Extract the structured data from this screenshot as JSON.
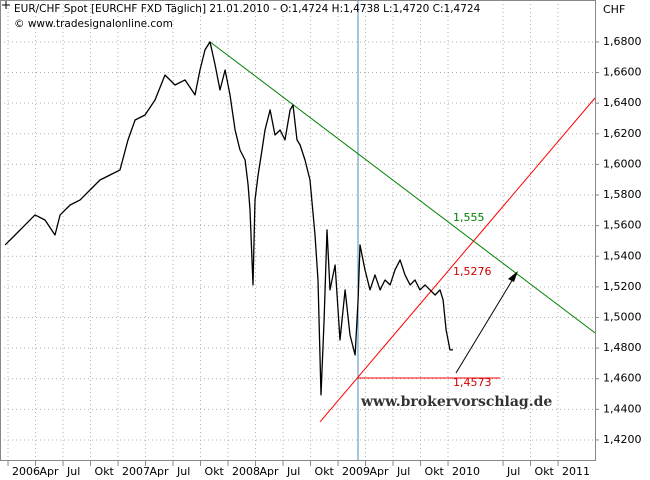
{
  "chart_data": {
    "type": "line",
    "title": "EUR/CHF Spot [EURCHF FXD  Täglich] 21.01.2010 - O:1,4724 H:1,4738 L:1,4720 C:1,4724",
    "subtitle": "© www.tradesignalonline.com",
    "y_label": "CHF",
    "watermark": "www.brokervorschlag.de",
    "grid": true,
    "xlim": [
      2005.927,
      2011.336
    ],
    "ylim": [
      1.4069,
      1.7074
    ],
    "xticks": [
      {
        "value": 2006,
        "label": "2006"
      },
      {
        "value": 2006.25,
        "label": "Apr"
      },
      {
        "value": 2006.5,
        "label": "Jul"
      },
      {
        "value": 2006.75,
        "label": "Okt"
      },
      {
        "value": 2007,
        "label": "2007"
      },
      {
        "value": 2007.25,
        "label": "Apr"
      },
      {
        "value": 2007.5,
        "label": "Jul"
      },
      {
        "value": 2007.75,
        "label": "Okt"
      },
      {
        "value": 2008,
        "label": "2008"
      },
      {
        "value": 2008.25,
        "label": "Apr"
      },
      {
        "value": 2008.5,
        "label": "Jul"
      },
      {
        "value": 2008.75,
        "label": "Okt"
      },
      {
        "value": 2009,
        "label": "2009"
      },
      {
        "value": 2009.25,
        "label": "Apr"
      },
      {
        "value": 2009.5,
        "label": "Jul"
      },
      {
        "value": 2009.75,
        "label": "Okt"
      },
      {
        "value": 2010,
        "label": "2010"
      },
      {
        "value": 2010.5,
        "label": "Jul"
      },
      {
        "value": 2010.75,
        "label": "Okt"
      },
      {
        "value": 2011,
        "label": "2011"
      }
    ],
    "yticks": [
      {
        "value": 1.42,
        "label": "1,4200"
      },
      {
        "value": 1.44,
        "label": "1,4400"
      },
      {
        "value": 1.46,
        "label": "1,4600"
      },
      {
        "value": 1.48,
        "label": "1,4800"
      },
      {
        "value": 1.5,
        "label": "1,5000"
      },
      {
        "value": 1.52,
        "label": "1,5200"
      },
      {
        "value": 1.54,
        "label": "1,5400"
      },
      {
        "value": 1.56,
        "label": "1,5600"
      },
      {
        "value": 1.58,
        "label": "1,5800"
      },
      {
        "value": 1.6,
        "label": "1,6000"
      },
      {
        "value": 1.62,
        "label": "1,6200"
      },
      {
        "value": 1.64,
        "label": "1,6400"
      },
      {
        "value": 1.66,
        "label": "1,6600"
      },
      {
        "value": 1.68,
        "label": "1,6800"
      }
    ],
    "series": [
      {
        "name": "EUR/CHF",
        "color": "#000000",
        "x": [
          2005.973,
          2006.064,
          2006.155,
          2006.245,
          2006.336,
          2006.427,
          2006.473,
          2006.564,
          2006.655,
          2006.745,
          2006.836,
          2006.927,
          2007.018,
          2007.091,
          2007.155,
          2007.245,
          2007.336,
          2007.427,
          2007.518,
          2007.609,
          2007.7,
          2007.745,
          2007.791,
          2007.836,
          2007.882,
          2007.927,
          2007.973,
          2008.018,
          2008.064,
          2008.109,
          2008.155,
          2008.182,
          2008.2,
          2008.227,
          2008.245,
          2008.273,
          2008.309,
          2008.336,
          2008.382,
          2008.427,
          2008.473,
          2008.518,
          2008.564,
          2008.591,
          2008.627,
          2008.655,
          2008.7,
          2008.745,
          2008.791,
          2008.818,
          2008.845,
          2008.873,
          2008.9,
          2008.927,
          2008.973,
          2009.018,
          2009.064,
          2009.109,
          2009.155,
          2009.182,
          2009.2,
          2009.245,
          2009.291,
          2009.336,
          2009.382,
          2009.427,
          2009.473,
          2009.518,
          2009.564,
          2009.609,
          2009.655,
          2009.7,
          2009.745,
          2009.791,
          2009.836,
          2009.882,
          2009.927,
          2009.955,
          2009.982,
          2010.018,
          2010.045
        ],
        "values": [
          1.5474,
          1.5539,
          1.5605,
          1.567,
          1.5637,
          1.5539,
          1.567,
          1.5735,
          1.5768,
          1.5833,
          1.5898,
          1.5931,
          1.5964,
          1.616,
          1.629,
          1.6323,
          1.6421,
          1.6584,
          1.6519,
          1.6552,
          1.6454,
          1.6617,
          1.6748,
          1.68,
          1.665,
          1.6486,
          1.6617,
          1.6454,
          1.6225,
          1.6094,
          1.6029,
          1.5866,
          1.5703,
          1.5213,
          1.5768,
          1.5931,
          1.6094,
          1.6225,
          1.6356,
          1.6192,
          1.6225,
          1.616,
          1.6356,
          1.6388,
          1.616,
          1.6127,
          1.6029,
          1.5898,
          1.5539,
          1.5245,
          1.4494,
          1.4984,
          1.5572,
          1.518,
          1.5343,
          1.4853,
          1.518,
          1.4886,
          1.4755,
          1.5115,
          1.5474,
          1.5311,
          1.518,
          1.5278,
          1.518,
          1.5245,
          1.5213,
          1.5311,
          1.5376,
          1.5278,
          1.5213,
          1.5245,
          1.518,
          1.5213,
          1.518,
          1.5147,
          1.518,
          1.5115,
          1.4919,
          1.4788,
          1.4788
        ]
      }
    ],
    "trendlines": [
      {
        "color": "#008000",
        "x": [
          2007.836,
          2011.336
        ],
        "values": [
          1.68,
          1.4899
        ]
      },
      {
        "color": "#ff0000",
        "x": [
          2008.836,
          2011.336
        ],
        "values": [
          1.4318,
          1.6434
        ]
      },
      {
        "color": "#ff0000",
        "x": [
          2009.182,
          2010.473
        ],
        "values": [
          1.4605,
          1.4605
        ]
      }
    ],
    "annotations": [
      "1,555",
      "1,5276",
      "1,4573"
    ]
  }
}
